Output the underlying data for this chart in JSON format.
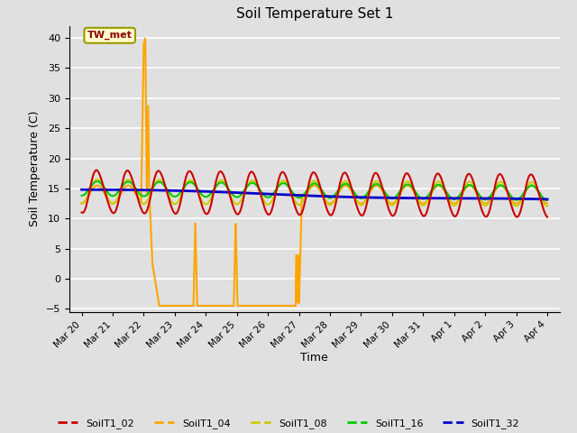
{
  "title": "Soil Temperature Set 1",
  "xlabel": "Time",
  "ylabel": "Soil Temperature (C)",
  "ylim": [
    -5.5,
    42
  ],
  "yticks": [
    -5,
    0,
    5,
    10,
    15,
    20,
    25,
    30,
    35,
    40
  ],
  "bg_color": "#e0e0e0",
  "annotation_text": "TW_met",
  "series_colors": {
    "SoilT1_02": "#cc0000",
    "SoilT1_04": "#ffa500",
    "SoilT1_08": "#cccc00",
    "SoilT1_16": "#00cc00",
    "SoilT1_32": "#0000cc"
  },
  "xtick_labels": [
    "Mar 20",
    "Mar 21",
    "Mar 22",
    "Mar 23",
    "Mar 24",
    "Mar 25",
    "Mar 26",
    "Mar 27",
    "Mar 28",
    "Mar 29",
    "Mar 30",
    "Mar 31",
    "Apr 1",
    "Apr 2",
    "Apr 3",
    "Apr 4"
  ],
  "legend_labels": [
    "SoilT1_02",
    "SoilT1_04",
    "SoilT1_08",
    "SoilT1_16",
    "SoilT1_32"
  ]
}
